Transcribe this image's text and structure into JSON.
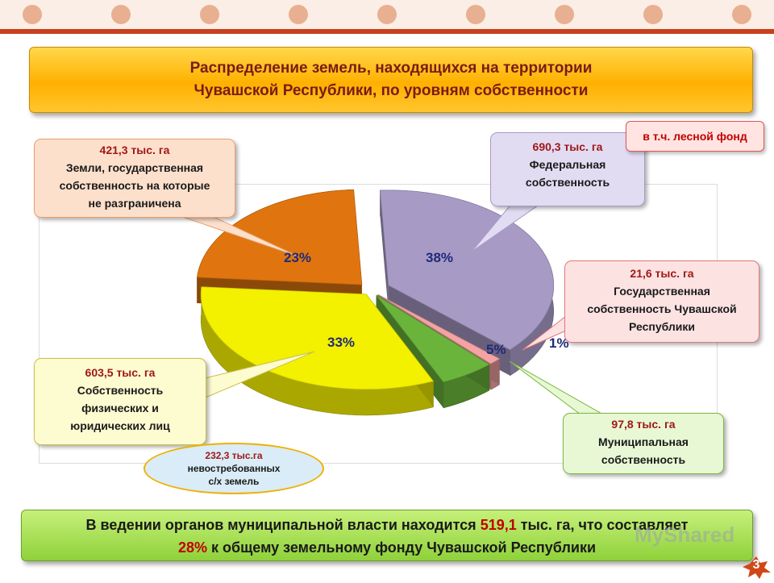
{
  "title": {
    "line1": "Распределение земель, находящихся на территории",
    "line2": "Чувашской Республики, по уровням собственности"
  },
  "colors": {
    "federal": "#a79bc6",
    "republic": "#f4a3a3",
    "municipal": "#6ab43b",
    "individuals": "#f3f000",
    "undelimited": "#e0750f"
  },
  "chart_data": {
    "type": "pie",
    "slices": [
      {
        "label": "Федеральная собственность",
        "value": 690.3,
        "percent": 38,
        "color": "#a79bc6"
      },
      {
        "label": "Государственная собственность Чувашской Республики",
        "value": 21.6,
        "percent": 1,
        "color": "#f4a3a3"
      },
      {
        "label": "Муниципальная собственность",
        "value": 97.8,
        "percent": 5,
        "color": "#6ab43b"
      },
      {
        "label": "Собственность физических и юридических лиц",
        "value": 603.5,
        "percent": 33,
        "color": "#f3f000"
      },
      {
        "label": "Земли, государственная собственность на которые не разграничена",
        "value": 421.3,
        "percent": 23,
        "color": "#e0750f"
      }
    ],
    "percent_labels": [
      "38%",
      "1%",
      "5%",
      "33%",
      "23%"
    ]
  },
  "callouts": {
    "undelimited": {
      "value": "421,3 тыс. га",
      "l1": "Земли, государственная",
      "l2": "собственность на которые",
      "l3": "не разграничена"
    },
    "federal": {
      "value": "690,3 тыс. га",
      "l1": "Федеральная",
      "l2": "собственность"
    },
    "republic": {
      "value": "21,6 тыс. га",
      "l1": "Государственная",
      "l2": "собственность Чувашской",
      "l3": "Республики"
    },
    "individuals": {
      "value": "603,5 тыс. га",
      "l1": "Собственность",
      "l2": "физических и",
      "l3": "юридических лиц"
    },
    "municipal": {
      "value": "97,8 тыс. га",
      "l1": "Муниципальная",
      "l2": "собственность"
    }
  },
  "forest_note": "в т.ч. лесной фонд",
  "unclaimed": {
    "value": "232,3 тыс.га",
    "l1": "невостребованных",
    "l2": "с/х земель"
  },
  "bottom": {
    "t1": "В ведении органов муниципальной власти находится ",
    "h1": "519,1",
    "t2": " тыс. га, что составляет",
    "h2": "28%",
    "t3": " к общему земельному фонду Чувашской Республики"
  },
  "page_number": "3",
  "watermark": "MyShared"
}
